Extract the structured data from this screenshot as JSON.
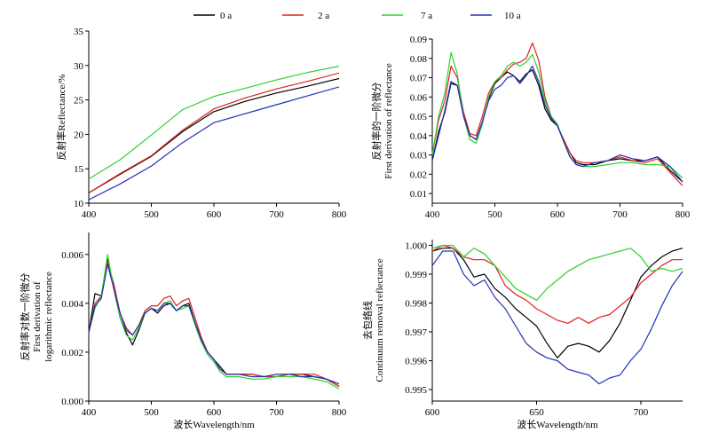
{
  "legend": {
    "entries": [
      {
        "label": "0 a",
        "color": "#000000"
      },
      {
        "label": "2 a",
        "color": "#e0201f"
      },
      {
        "label": "7 a",
        "color": "#2ed12e"
      },
      {
        "label": "10 a",
        "color": "#1f2fb8"
      }
    ],
    "placement": "top-center"
  },
  "chart_data": [
    {
      "type": "line",
      "ylabel": "反射率Reflectance/%",
      "xlim": [
        400,
        800
      ],
      "ylim": [
        10,
        35
      ],
      "xticks": [
        400,
        500,
        600,
        700,
        800
      ],
      "yticks": [
        10,
        15,
        20,
        25,
        30,
        35
      ],
      "x": [
        400,
        450,
        500,
        550,
        600,
        650,
        700,
        750,
        800
      ],
      "series": [
        {
          "name": "0 a",
          "values": [
            11.5,
            14.2,
            16.8,
            20.4,
            23.3,
            24.8,
            26.0,
            27.0,
            28.1
          ]
        },
        {
          "name": "2 a",
          "values": [
            11.5,
            14.3,
            16.9,
            20.6,
            23.7,
            25.3,
            26.6,
            27.7,
            28.9
          ]
        },
        {
          "name": "7 a",
          "values": [
            13.5,
            16.3,
            19.9,
            23.6,
            25.5,
            26.7,
            27.9,
            29.0,
            29.9
          ]
        },
        {
          "name": "10 a",
          "values": [
            10.5,
            12.8,
            15.4,
            18.8,
            21.7,
            23.0,
            24.3,
            25.6,
            26.9
          ]
        }
      ]
    },
    {
      "type": "line",
      "ylabel": [
        "反射率的一阶微分",
        "First derivation of reflectance"
      ],
      "xlim": [
        400,
        800
      ],
      "ylim": [
        0.005,
        0.09
      ],
      "xticks": [
        400,
        500,
        600,
        700,
        800
      ],
      "yticks": [
        0.01,
        0.02,
        0.03,
        0.04,
        0.05,
        0.06,
        0.07,
        0.08,
        0.09
      ],
      "x": [
        400,
        410,
        420,
        430,
        440,
        450,
        460,
        470,
        480,
        490,
        500,
        510,
        520,
        530,
        540,
        550,
        560,
        570,
        580,
        590,
        600,
        610,
        620,
        630,
        640,
        660,
        680,
        700,
        720,
        740,
        760,
        780,
        800
      ],
      "series": [
        {
          "name": "0 a",
          "values": [
            0.027,
            0.042,
            0.052,
            0.067,
            0.066,
            0.05,
            0.04,
            0.038,
            0.047,
            0.059,
            0.067,
            0.07,
            0.073,
            0.071,
            0.068,
            0.072,
            0.074,
            0.066,
            0.054,
            0.048,
            0.045,
            0.038,
            0.031,
            0.026,
            0.025,
            0.025,
            0.027,
            0.028,
            0.027,
            0.027,
            0.029,
            0.022,
            0.016
          ]
        },
        {
          "name": "2 a",
          "values": [
            0.03,
            0.048,
            0.058,
            0.076,
            0.07,
            0.052,
            0.041,
            0.04,
            0.05,
            0.062,
            0.068,
            0.07,
            0.074,
            0.077,
            0.078,
            0.08,
            0.088,
            0.079,
            0.06,
            0.05,
            0.045,
            0.038,
            0.031,
            0.027,
            0.026,
            0.026,
            0.027,
            0.029,
            0.027,
            0.026,
            0.028,
            0.021,
            0.014
          ]
        },
        {
          "name": "7 a",
          "values": [
            0.03,
            0.05,
            0.062,
            0.083,
            0.072,
            0.05,
            0.038,
            0.036,
            0.046,
            0.06,
            0.068,
            0.071,
            0.076,
            0.078,
            0.076,
            0.078,
            0.082,
            0.073,
            0.058,
            0.05,
            0.046,
            0.037,
            0.029,
            0.025,
            0.024,
            0.024,
            0.025,
            0.026,
            0.026,
            0.025,
            0.025,
            0.024,
            0.018
          ]
        },
        {
          "name": "10 a",
          "values": [
            0.027,
            0.04,
            0.053,
            0.068,
            0.066,
            0.05,
            0.04,
            0.038,
            0.047,
            0.058,
            0.064,
            0.066,
            0.07,
            0.071,
            0.067,
            0.071,
            0.076,
            0.068,
            0.056,
            0.049,
            0.045,
            0.037,
            0.029,
            0.025,
            0.024,
            0.026,
            0.027,
            0.03,
            0.028,
            0.027,
            0.029,
            0.024,
            0.016
          ]
        }
      ]
    },
    {
      "type": "line",
      "xlabel": "波长Wavelength/nm",
      "ylabel": [
        "反射率对数一阶微分",
        "First derivation of",
        "logarithmic reflectance"
      ],
      "xlim": [
        400,
        800
      ],
      "ylim": [
        0.0,
        0.0069
      ],
      "xticks": [
        400,
        500,
        600,
        700,
        800
      ],
      "yticks": [
        0.0,
        0.002,
        0.004,
        0.006
      ],
      "x": [
        400,
        410,
        420,
        430,
        440,
        450,
        460,
        470,
        480,
        490,
        500,
        510,
        520,
        530,
        540,
        550,
        560,
        570,
        580,
        590,
        600,
        610,
        620,
        640,
        660,
        680,
        700,
        720,
        740,
        760,
        780,
        800
      ],
      "series": [
        {
          "name": "0 a",
          "values": [
            0.0028,
            0.0044,
            0.0043,
            0.0058,
            0.0046,
            0.0034,
            0.0028,
            0.0023,
            0.0029,
            0.0036,
            0.0038,
            0.0036,
            0.0039,
            0.004,
            0.0037,
            0.0039,
            0.004,
            0.0032,
            0.0025,
            0.002,
            0.0017,
            0.0014,
            0.0011,
            0.0011,
            0.0011,
            0.001,
            0.001,
            0.0011,
            0.0011,
            0.001,
            0.0009,
            0.0006
          ]
        },
        {
          "name": "2 a",
          "values": [
            0.0028,
            0.004,
            0.0043,
            0.0057,
            0.0048,
            0.0036,
            0.003,
            0.0027,
            0.0031,
            0.0037,
            0.0039,
            0.0039,
            0.0042,
            0.0043,
            0.0039,
            0.0041,
            0.0042,
            0.0034,
            0.0026,
            0.002,
            0.0017,
            0.0013,
            0.0011,
            0.0011,
            0.0011,
            0.001,
            0.001,
            0.0011,
            0.0011,
            0.0011,
            0.0009,
            0.0006
          ]
        },
        {
          "name": "7 a",
          "values": [
            0.0028,
            0.0038,
            0.0043,
            0.006,
            0.0046,
            0.0034,
            0.0027,
            0.0025,
            0.003,
            0.0036,
            0.0038,
            0.0037,
            0.004,
            0.0041,
            0.0037,
            0.0038,
            0.0039,
            0.0031,
            0.0024,
            0.0019,
            0.0016,
            0.0012,
            0.001,
            0.001,
            0.0009,
            0.0009,
            0.001,
            0.001,
            0.001,
            0.0009,
            0.0008,
            0.0005
          ]
        },
        {
          "name": "10 a",
          "values": [
            0.0028,
            0.0039,
            0.0042,
            0.0056,
            0.0046,
            0.0036,
            0.0029,
            0.0027,
            0.0031,
            0.0036,
            0.0038,
            0.0037,
            0.004,
            0.004,
            0.0037,
            0.0039,
            0.0039,
            0.0032,
            0.0025,
            0.002,
            0.0017,
            0.0013,
            0.0011,
            0.0011,
            0.001,
            0.001,
            0.0011,
            0.0011,
            0.001,
            0.001,
            0.0009,
            0.0007
          ]
        }
      ]
    },
    {
      "type": "line",
      "xlabel": "波长Wavelength/nm",
      "ylabel": [
        "去包络线",
        "Continuum removal reflectance"
      ],
      "xlim": [
        600,
        720
      ],
      "ylim": [
        0.9946,
        1.0002
      ],
      "xticks": [
        600,
        650,
        700
      ],
      "yticks": [
        0.995,
        0.996,
        0.997,
        0.998,
        0.999,
        1.0
      ],
      "ytick_labels": [
        "0.995",
        "0.996",
        "0.997",
        "0.998",
        "0.999",
        "1.000"
      ],
      "x": [
        600,
        605,
        610,
        615,
        620,
        625,
        630,
        635,
        640,
        645,
        650,
        655,
        660,
        665,
        670,
        675,
        680,
        685,
        690,
        695,
        700,
        705,
        710,
        715,
        720
      ],
      "series": [
        {
          "name": "0 a",
          "values": [
            0.9998,
            0.9999,
            0.9999,
            0.9995,
            0.9989,
            0.999,
            0.9985,
            0.9982,
            0.9978,
            0.9975,
            0.9972,
            0.9966,
            0.9961,
            0.9965,
            0.9966,
            0.9965,
            0.9963,
            0.9967,
            0.9973,
            0.9981,
            0.9989,
            0.9993,
            0.9996,
            0.9998,
            0.9999
          ]
        },
        {
          "name": "2 a",
          "values": [
            0.9998,
            1.0,
            0.9999,
            0.9996,
            0.9995,
            0.9995,
            0.9993,
            0.9986,
            0.9983,
            0.9981,
            0.9978,
            0.9976,
            0.9974,
            0.9973,
            0.9975,
            0.9973,
            0.9975,
            0.9976,
            0.9979,
            0.9982,
            0.9987,
            0.999,
            0.9993,
            0.9995,
            0.9995
          ]
        },
        {
          "name": "7 a",
          "values": [
            0.9999,
            1.0,
            1.0,
            0.9996,
            0.9999,
            0.9997,
            0.9993,
            0.9989,
            0.9985,
            0.9983,
            0.9981,
            0.9985,
            0.9988,
            0.9991,
            0.9993,
            0.9995,
            0.9996,
            0.9997,
            0.9998,
            0.9999,
            0.9996,
            0.9991,
            0.9992,
            0.9991,
            0.9992
          ]
        },
        {
          "name": "10 a",
          "values": [
            0.9993,
            0.9998,
            0.9998,
            0.999,
            0.9986,
            0.9988,
            0.9982,
            0.9978,
            0.9972,
            0.9966,
            0.9963,
            0.9961,
            0.996,
            0.9957,
            0.9956,
            0.9955,
            0.9952,
            0.9954,
            0.9955,
            0.996,
            0.9964,
            0.9971,
            0.9979,
            0.9986,
            0.9991
          ]
        }
      ]
    }
  ]
}
